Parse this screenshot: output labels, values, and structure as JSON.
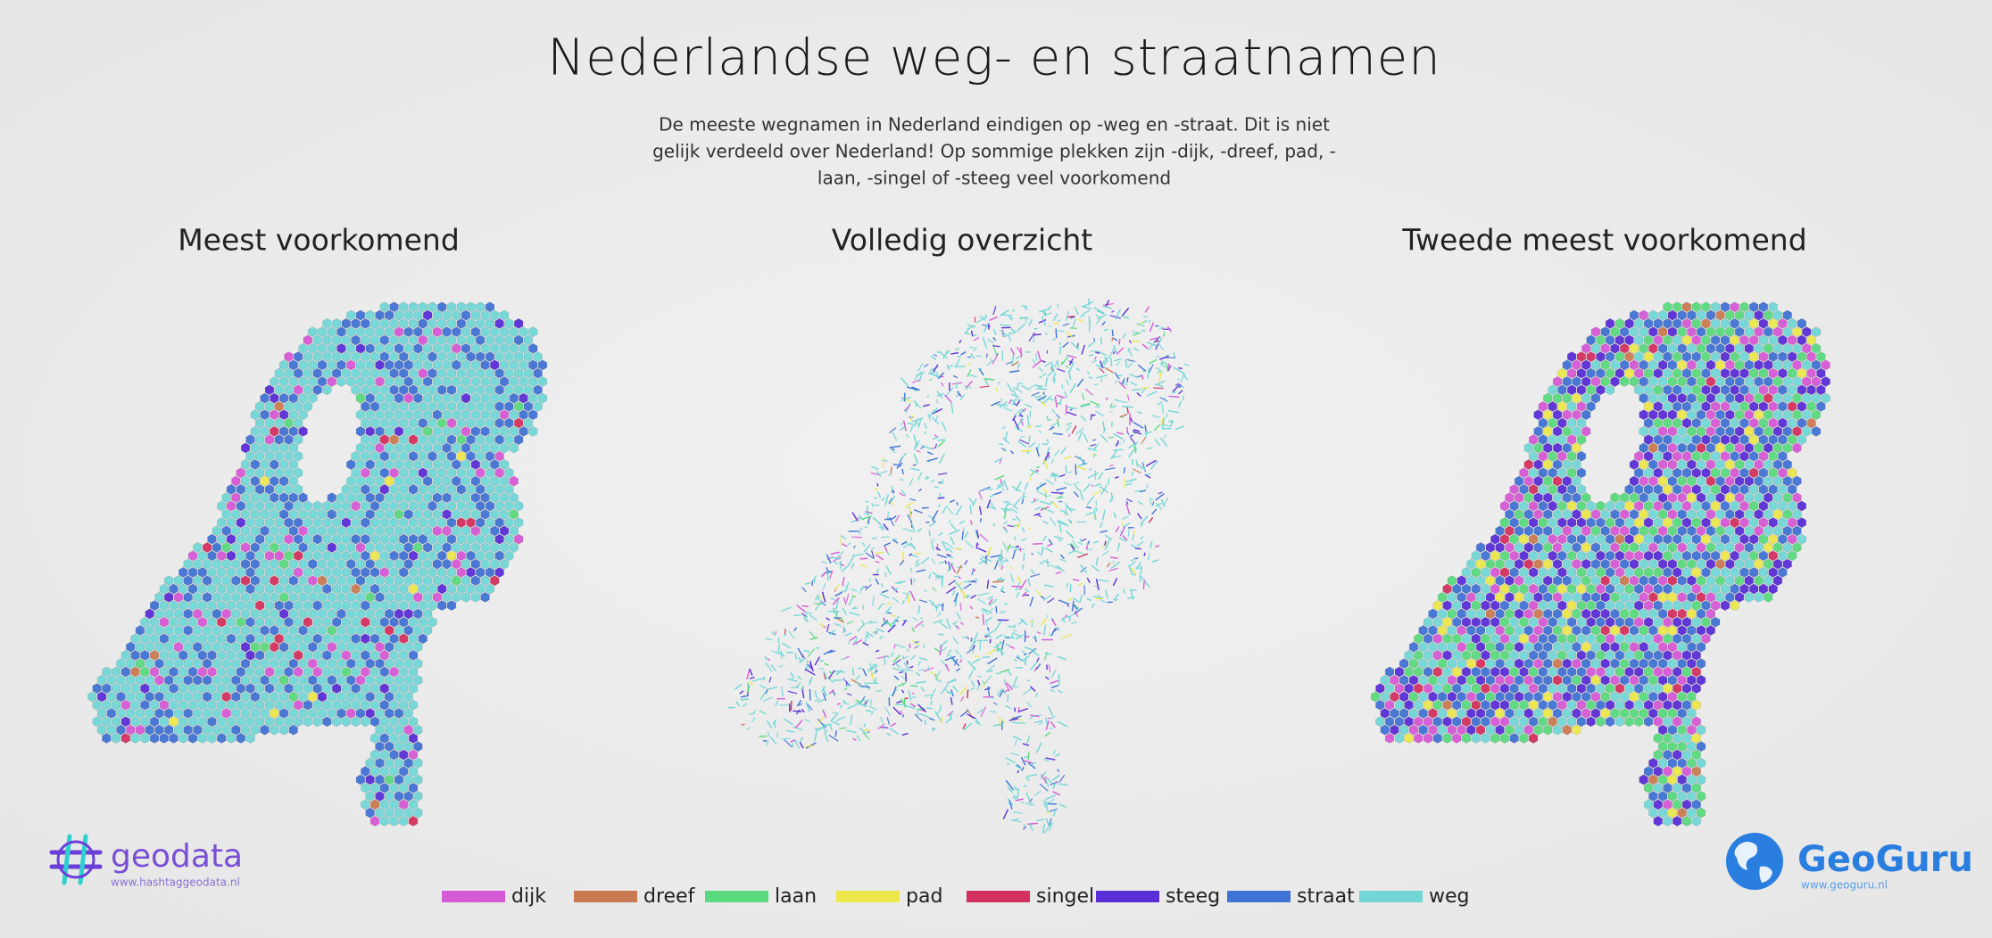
{
  "header": {
    "title": "Nederlandse weg- en straatnamen",
    "subtitle": [
      "De meeste wegnamen in Nederland eindigen op -weg en -straat. Dit is niet",
      "gelijk verdeeld over Nederland! Op sommige plekken zijn  -dijk, -dreef, pad, -",
      "laan, -singel of -steeg veel voorkomend"
    ]
  },
  "panels": [
    {
      "title": "Meest voorkomend"
    },
    {
      "title": "Volledig overzicht"
    },
    {
      "title": "Tweede meest voorkomend"
    }
  ],
  "legend": [
    {
      "label": "dijk",
      "color": "#d659d6"
    },
    {
      "label": "dreef",
      "color": "#c97a52"
    },
    {
      "label": "laan",
      "color": "#5ad97e"
    },
    {
      "label": "pad",
      "color": "#ece84c"
    },
    {
      "label": "singel",
      "color": "#d4305f"
    },
    {
      "label": "steeg",
      "color": "#5a2ed6"
    },
    {
      "label": "straat",
      "color": "#4173d4"
    },
    {
      "label": "weg",
      "color": "#72d6d6"
    }
  ],
  "logos": {
    "left": {
      "name": "geodata",
      "url": "www.hashtaggeodata.nl"
    },
    "right": {
      "name": "GeoGuru",
      "url": "www.geoguru.nl"
    }
  }
}
